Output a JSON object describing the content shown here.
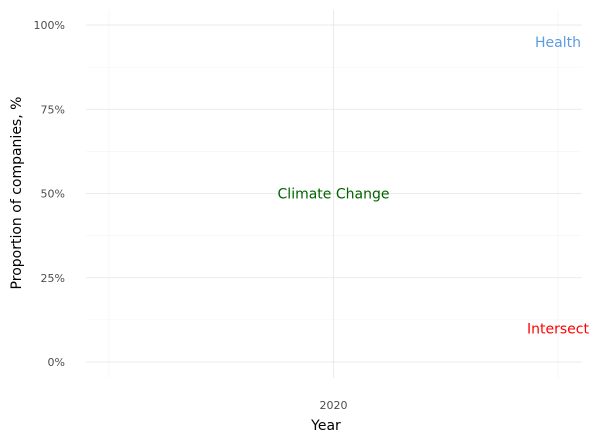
{
  "chart_data": {
    "type": "scatter",
    "xlabel": "Year",
    "ylabel": "Proportion of companies, %",
    "x_ticks": [
      2020
    ],
    "x_tick_labels": [
      "2020"
    ],
    "xlim": [
      2019,
      2021
    ],
    "ylim": [
      0,
      100
    ],
    "y_ticks": [
      0,
      25,
      50,
      75,
      100
    ],
    "y_tick_labels": [
      "0%",
      "25%",
      "50%",
      "75%",
      "100%"
    ],
    "grid": true,
    "annotations": [
      {
        "text": "Health",
        "x": 2021,
        "y": 95,
        "color": "#5B9BE6"
      },
      {
        "text": "Climate Change",
        "x": 2020,
        "y": 50,
        "color": "#006400"
      },
      {
        "text": "Intersect",
        "x": 2021,
        "y": 10,
        "color": "#FF0000"
      }
    ]
  }
}
